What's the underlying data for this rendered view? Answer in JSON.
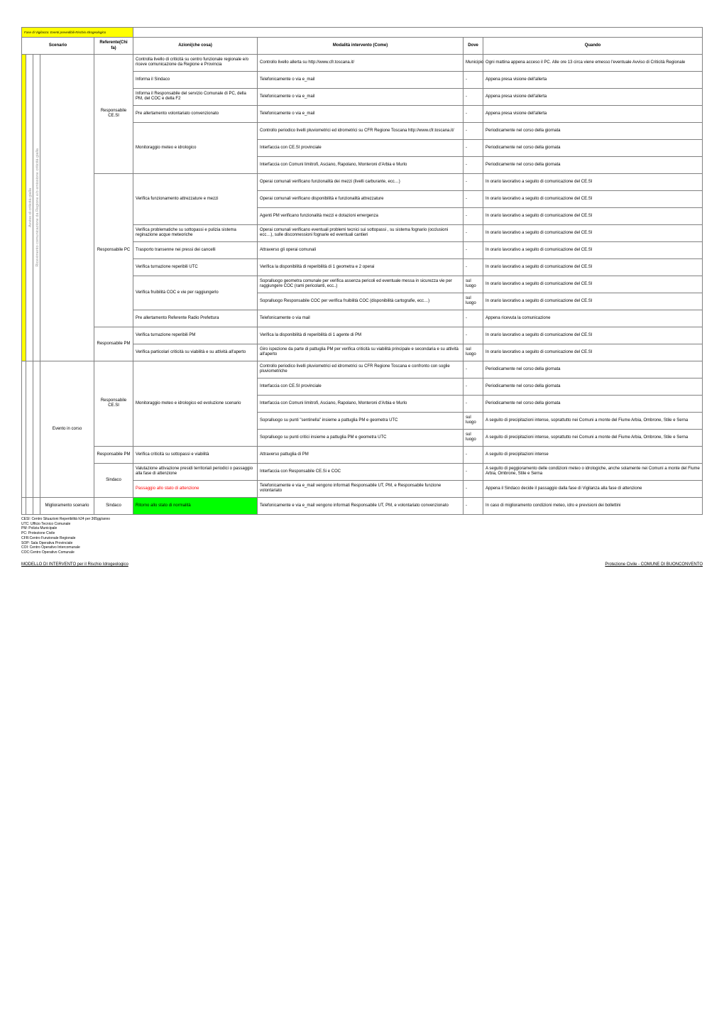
{
  "header": {
    "fase": "Fase di Vigilanza: Eventi prevedibili-Rischio Idrogeologico",
    "scenario": "Scenario",
    "referente": "Referente(Chi fa)",
    "azioni": "Azioni(che cosa)",
    "modalita": "Modalità intervento (Come)",
    "dove": "Dove",
    "quando": "Quando"
  },
  "vert1": "Avviso di criticità gialla",
  "vert2": "Ricevimento comunicazione da Regione e/o emissione criticità gialla",
  "referenti": {
    "cesi": "Responsabile CE.SI",
    "pc": "Responsabile PC",
    "pm": "Responsabile PM",
    "sindaco": "Sindaco"
  },
  "scenarioLabels": {
    "eventoInCorso": "Evento in corso",
    "miglioramento": "Miglioramento scenario"
  },
  "rows": [
    {
      "az": "Controlla livello di criticità su centro funzionale regionale e/o riceve comunicazione da Regione e Provincia",
      "mod": "Controllo livello allerta su http://www.cfr.toscana.it/",
      "dove": "Municipio",
      "q": "Ogni mattina appena acceso il PC. Alle ore 13 circa viene emesso l'eventuale Avviso di Criticità Regionale"
    },
    {
      "az": "Informa il Sindaco",
      "mod": "Telefonicamente o via e_mail",
      "dove": "-",
      "q": "Appena presa visione dell'allerta"
    },
    {
      "az": "Informa il Responsabile del servizio Comunale di PC, della PM, del COC e della  F2",
      "mod": "Telefonicamente o via e_mail",
      "dove": "-",
      "q": "Appena presa visione dell'allerta"
    },
    {
      "az": "Pre allertamento volontariato convenzionato",
      "mod": "Telefonicamente o via e_mail",
      "dove": "-",
      "q": "Appena presa visione dell'allerta"
    },
    {
      "az": "",
      "mod": "Controllo periodico livelli pluviometrici ed idrometrici su CFR Regione Toscana http://www.cfr.toscana.it/",
      "dove": "-",
      "q": "Periodicamente nel corso della giornata"
    },
    {
      "az": "Monitoraggio meteo e idrologico",
      "mod": "Interfaccia con CE.SI provinciale",
      "dove": "-",
      "q": "Periodicamente nel corso della giornata"
    },
    {
      "az": "",
      "mod": "Interfaccia con Comuni limitrofi, Asciano, Rapolano, Monteroni d'Arbia e Murlo",
      "dove": "-",
      "q": "Periodicamente nel corso della giornata"
    },
    {
      "az": "",
      "mod": "Operai comunali verificano funzionalità dei mezzi (livelli carburante, ecc…)",
      "dove": "-",
      "q": "In orario lavorativo a seguito di comunicazione del CE.SI"
    },
    {
      "az": "Verifica funzionamento attrezzature e mezzi",
      "mod": "Operai comunali verificano disponibilità e funzionalità attrezzature",
      "dove": "-",
      "q": "In orario lavorativo a seguito di comunicazione del CE.SI"
    },
    {
      "az": "",
      "mod": "Agenti PM verificano funzionalità mezzi e dotazioni emergenza",
      "dove": "-",
      "q": "In orario lavorativo a seguito di comunicazione del CE.SI"
    },
    {
      "az": "Verifica problematiche su sottopassi e pulizia sistema reginazione acque meteoriche",
      "mod": "Operai comunali verificano eventuali problemi tecnici sui sottopassi , su sistema fognario (occlusioni ecc…), sulle disconnessioni fognarie ed eventuali cantieri",
      "dove": "-",
      "q": "In orario lavorativo a seguito di comunicazione del CE.SI"
    },
    {
      "az": "Trasporto transenne nei pressi dei cancelli",
      "mod": "Attraverso gli operai comunali",
      "dove": "-",
      "q": "In orario lavorativo a seguito di comunicazione del CE.SI"
    },
    {
      "az": "Verifica turnazione reperibili UTC",
      "mod": "Verifica la disponibilità di reperibilità di 1 geometra e 2 operai",
      "dove": "-",
      "q": "In orario lavorativo a seguito di comunicazione del CE.SI"
    },
    {
      "az": "",
      "mod": "Sopralluogo geometra comunale per verifica assenza pericoli ed eventuale messa in sicurezza vie per raggiungere COC (rami pericolanti, ecc..)",
      "dove": "sul luogo",
      "q": "In orario lavorativo a seguito di comunicazione del CE.SI"
    },
    {
      "az": "Verifica fruibilità COC e vie per raggiungerlo",
      "mod": "Sopralluogo Responsabile COC per verifica fruibilità COC (disponibilità cartografie, ecc…)",
      "dove": "sul luogo",
      "q": "In orario lavorativo a seguito di comunicazione del CE.SI"
    },
    {
      "az": "Pre allertamento Referente Radio Prefettura",
      "mod": "Telefonicamente o via mail",
      "dove": "-",
      "q": "Appena ricevuta la comunicazione"
    },
    {
      "az": "Verifica turnazione reperibili PM",
      "mod": "Verifica la disponibilità di reperibilità di 1 agente di PM",
      "dove": "-",
      "q": "In orario lavorativo a seguito di comunicazione del CE.SI"
    },
    {
      "az": "Verifica particolari criticità su viabilità e su attività all'aperto",
      "mod": "Giro ispezione da parte di pattuglia PM per verifica criticità su viabilità principale e secondaria e su attività all'aperto",
      "dove": "sul luogo",
      "q": "In orario lavorativo a seguito di comunicazione del CE.SI"
    },
    {
      "az": "",
      "mod": "Controllo periodico livelli pluviometrici ed idrometrici su CFR Regione Toscana e confronto con soglie pluviometriche",
      "dove": "-",
      "q": "Periodicamente nel corso della giornata"
    },
    {
      "az": "",
      "mod": "Interfaccia con CE.SI provinciale",
      "dove": "-",
      "q": "Periodicamente nel corso della giornata"
    },
    {
      "az": "Monitoraggio meteo e idrologico ed evoluzione scenario",
      "mod": "Interfaccia con Comuni limitrofi, Asciano, Rapolano, Monteroni d'Arbia e Murlo",
      "dove": "-",
      "q": "Periodicamente nel corso della giornata"
    },
    {
      "az": "",
      "mod": "Sopralluogo su  punti \"sentinella\" insieme  a pattuglia PM e geometra UTC",
      "dove": "sul luogo",
      "q": "A seguito di precipitazioni intense, soprattutto nei Comuni a monte del Fiume Arbia, Ombrone, Stile e Serna"
    },
    {
      "az": "",
      "mod": "Sopralluogo su  punti critici insieme a pattuglia PM e geometra UTC",
      "dove": "sul luogo",
      "q": "A seguito di precipitazioni intense, soprattutto nei Comuni a monte del Fiume Arbia, Ombrone, Stile e Serna"
    },
    {
      "az": "Verifica criticità su sottopassi e viabilità",
      "mod": "Attraverso pattuglia di PM",
      "dove": "-",
      "q": "A seguito di precipitazioni intense"
    },
    {
      "az": "Valutazione attivazione presidi territoriali periodici  o passaggio alla fase di attenzione",
      "mod": "Interfaccia con Responsabile CE.Si e COC",
      "dove": "-",
      "q": "A seguito di peggioramento delle condizioni meteo o idrologiche, anche solamente nei Comuni a monte del Fiume Arbia, Ombrone, Stile e Serna"
    },
    {
      "az": "Passaggio allo stato di attenzione",
      "mod": "Telefonicamente e via e_mail vengono informati Responsabile UT, PM,  e Responsabile funzione volontariato",
      "dove": "-",
      "q": "Appena il Sindaco decide il passaggio dalla fase di Vigilanza alla fase di attenzione"
    },
    {
      "az": "Ritorno allo stato di normalità",
      "mod": "Telefonicamente e via e_mail vengono informati Responsabile UT, PM, e volontariato convenzionato",
      "dove": "-",
      "q": "In caso di miglioramento condizioni meteo, idro e previsioni dei bollettini"
    }
  ],
  "legend": [
    "CESI: Centro Situazioni Reperibilità h24 per 365gg/anno",
    "UTC: Ufficio Tecnico Comunale",
    "PM:  Polizia Municipale",
    "PC: Protezione Civile",
    "CFR:Centro Funzionale Regionale",
    "SOP: Sala Operativa Provinciale",
    "COI: Centro Operativo Intercomunale",
    "COC:Centro Operativo Comunale"
  ],
  "footer": {
    "left": "MODELLO DI INTERVENTO per il Rischio Idrogeologico",
    "right": "Protezione Civile  - COMUNE DI BUONCONVENTO"
  }
}
